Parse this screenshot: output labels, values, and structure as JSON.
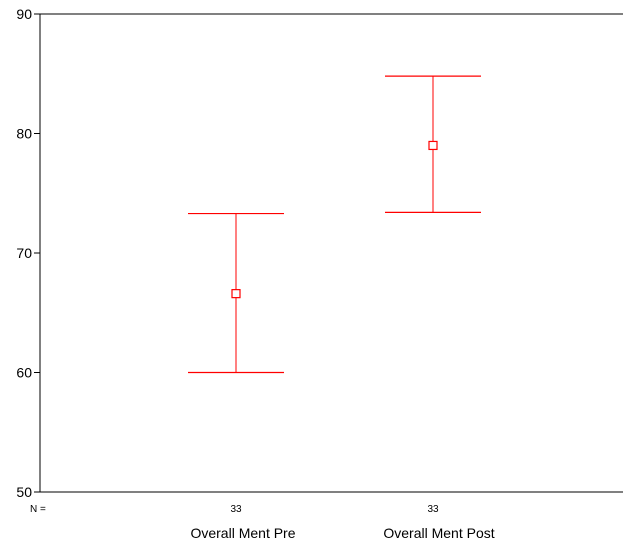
{
  "chart_data": {
    "type": "errorbar",
    "title": "",
    "xlabel": "",
    "ylabel": "",
    "ylim": [
      50,
      90
    ],
    "yticks": [
      50,
      60,
      70,
      80,
      90
    ],
    "categories": [
      "Overall Ment Pre",
      "Overall Ment Post"
    ],
    "n_prefix": "N =",
    "n_values": [
      "33",
      "33"
    ],
    "points": [
      {
        "category": "Overall Ment Pre",
        "mean": 66.6,
        "lower": 60.0,
        "upper": 73.3,
        "n": 33
      },
      {
        "category": "Overall Ment Post",
        "mean": 79.0,
        "lower": 73.4,
        "upper": 84.8,
        "n": 33
      }
    ],
    "grid": false,
    "legend": "none",
    "colors": {
      "series": "#ff0000",
      "axis": "#000000",
      "background": "#ffffff"
    },
    "marker": "open-square"
  }
}
